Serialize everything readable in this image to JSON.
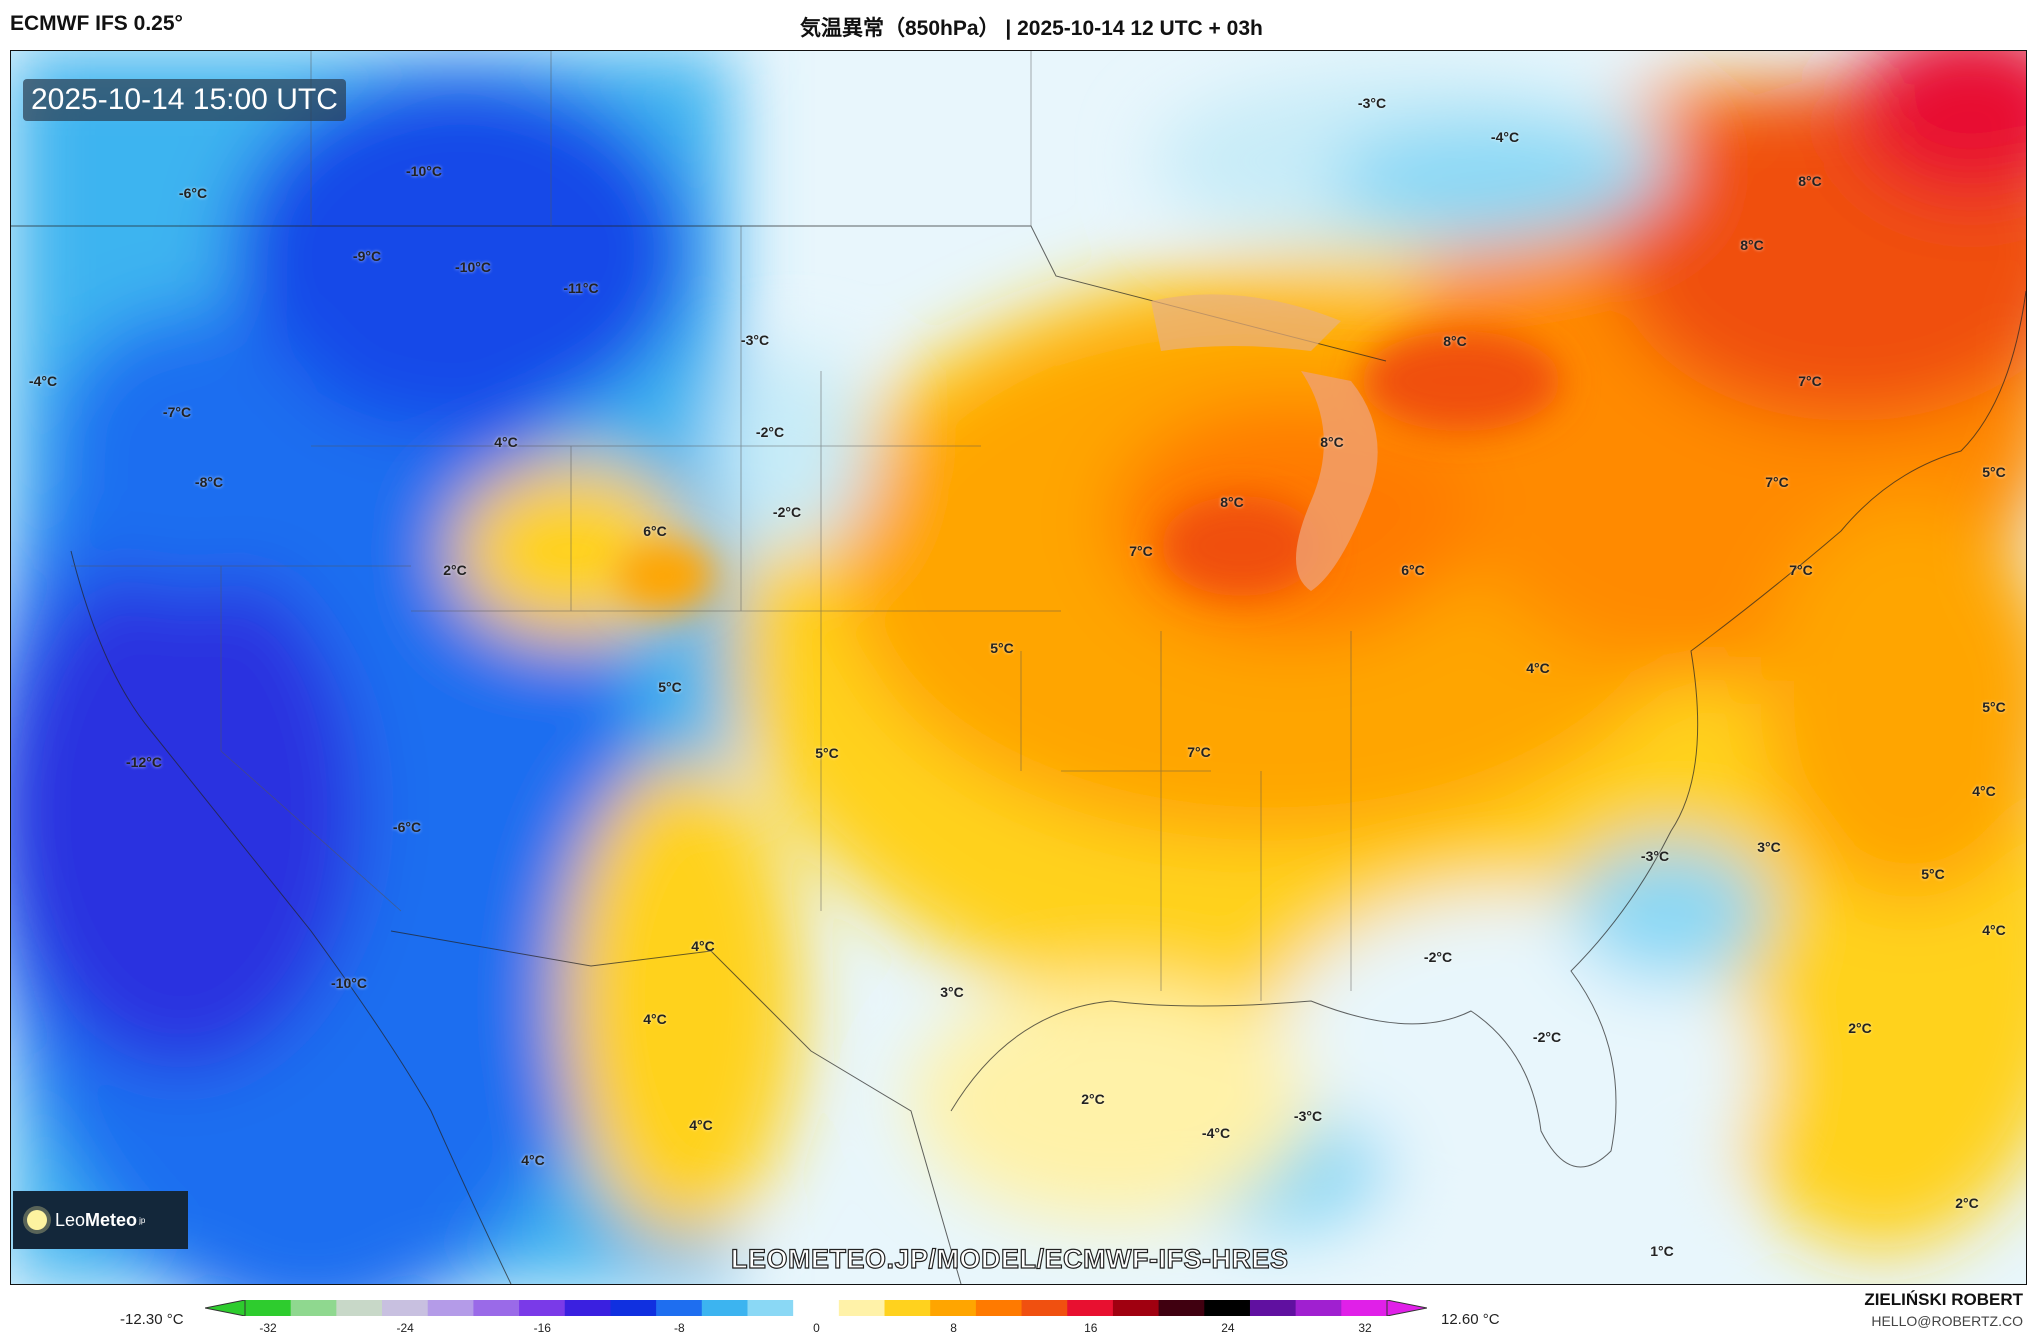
{
  "header": {
    "model": "ECMWF IFS 0.25°",
    "title": "気温異常（850hPa） | 2025-10-14 12 UTC + 03h"
  },
  "map": {
    "valid_time": "2025-10-14 15:00 UTC",
    "watermark": "LEOMETEO.JP/MODEL/ECMWF-IFS-HRES",
    "labels": [
      "-6°C",
      "-10°C",
      "-9°C",
      "-10°C",
      "-11°C",
      "-4°C",
      "-7°C",
      "-8°C",
      "4°C",
      "6°C",
      "2°C",
      "-3°C",
      "-2°C",
      "-2°C",
      "5°C",
      "5°C",
      "-12°C",
      "-6°C",
      "-10°C",
      "4°C",
      "4°C",
      "4°C",
      "4°C",
      "3°C",
      "2°C",
      "-4°C",
      "-3°C",
      "5°C",
      "7°C",
      "7°C",
      "8°C",
      "8°C",
      "6°C",
      "8°C",
      "4°C",
      "-2°C",
      "-2°C",
      "-3°C",
      "-4°C",
      "8°C",
      "8°C",
      "7°C",
      "7°C",
      "7°C",
      "5°C",
      "5°C",
      "4°C",
      "3°C",
      "-3°C",
      "5°C",
      "4°C",
      "2°C",
      "2°C",
      "1°C"
    ]
  },
  "logo": {
    "brand_a": "Leo",
    "brand_b": "Meteo",
    "suffix": "jp"
  },
  "colorbar": {
    "min_label": "-12.30 °C",
    "max_label": "12.60 °C",
    "ticks": [
      "-32",
      "-24",
      "-16",
      "-8",
      "0",
      "8",
      "16",
      "24",
      "32"
    ],
    "colors": [
      "#2ecc2e",
      "#8fd88f",
      "#c8d8c8",
      "#c8c0e0",
      "#b49be8",
      "#9a6ae8",
      "#7a3ae8",
      "#3a20e0",
      "#1030e0",
      "#1e6ef0",
      "#3cb4f0",
      "#8ad8f5",
      "#ffffff",
      "#fff2a8",
      "#ffd21e",
      "#ffa500",
      "#ff7a00",
      "#f05010",
      "#e81030",
      "#a00010",
      "#400010",
      "#000000",
      "#6010a0",
      "#a020d0",
      "#e020e8"
    ]
  },
  "credit": {
    "author": "ZIELIŃSKI ROBERT",
    "email": "HELLO@ROBERTZ.CO"
  }
}
